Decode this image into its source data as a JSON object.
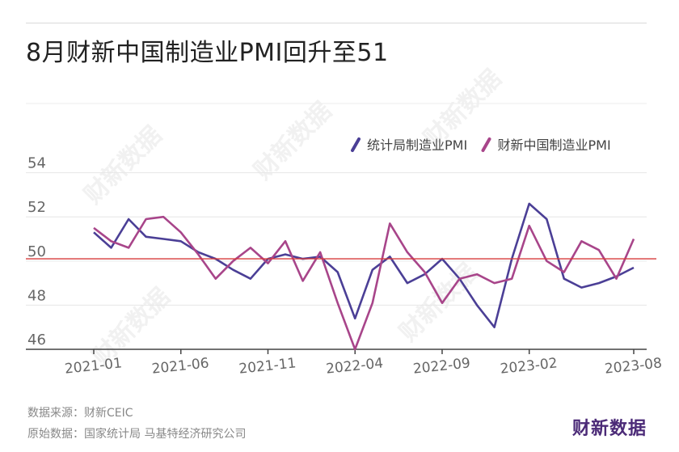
{
  "title": "8月财新中国制造业PMI回升至51",
  "chart_data": {
    "type": "line",
    "x": [
      "2021-01",
      "2021-02",
      "2021-03",
      "2021-04",
      "2021-05",
      "2021-06",
      "2021-07",
      "2021-08",
      "2021-09",
      "2021-10",
      "2021-11",
      "2021-12",
      "2022-01",
      "2022-02",
      "2022-03",
      "2022-04",
      "2022-05",
      "2022-06",
      "2022-07",
      "2022-08",
      "2022-09",
      "2022-10",
      "2022-11",
      "2022-12",
      "2023-01",
      "2023-02",
      "2023-03",
      "2023-04",
      "2023-05",
      "2023-06",
      "2023-07",
      "2023-08"
    ],
    "xticks": [
      "2021-01",
      "2021-06",
      "2021-11",
      "2022-04",
      "2022-09",
      "2023-02",
      "2023-08"
    ],
    "yticks": [
      46,
      48,
      50,
      52,
      54
    ],
    "ylim": [
      46,
      54.5
    ],
    "reference_line": 50.1,
    "series": [
      {
        "name": "统计局制造业PMI",
        "color": "#4b3f96",
        "values": [
          51.3,
          50.6,
          51.9,
          51.1,
          51.0,
          50.9,
          50.4,
          50.1,
          49.6,
          49.2,
          50.1,
          50.3,
          50.1,
          50.2,
          49.5,
          47.4,
          49.6,
          50.2,
          49.0,
          49.4,
          50.1,
          49.2,
          48.0,
          47.0,
          50.1,
          52.6,
          51.9,
          49.2,
          48.8,
          49.0,
          49.3,
          49.7
        ]
      },
      {
        "name": "财新中国制造业PMI",
        "color": "#a8458a",
        "values": [
          51.5,
          50.9,
          50.6,
          51.9,
          52.0,
          51.3,
          50.3,
          49.2,
          50.0,
          50.6,
          49.9,
          50.9,
          49.1,
          50.4,
          48.1,
          46.0,
          48.1,
          51.7,
          50.4,
          49.5,
          48.1,
          49.2,
          49.4,
          49.0,
          49.2,
          51.6,
          50.0,
          49.5,
          50.9,
          50.5,
          49.2,
          51.0
        ]
      }
    ]
  },
  "footer": {
    "source_label": "数据来源：",
    "source_value": "财新CEIC",
    "origin_label": "原始数据：",
    "origin_value": "国家统计局 马基特经济研究公司"
  },
  "brand": "财新数据",
  "watermark_text": "财新数据"
}
